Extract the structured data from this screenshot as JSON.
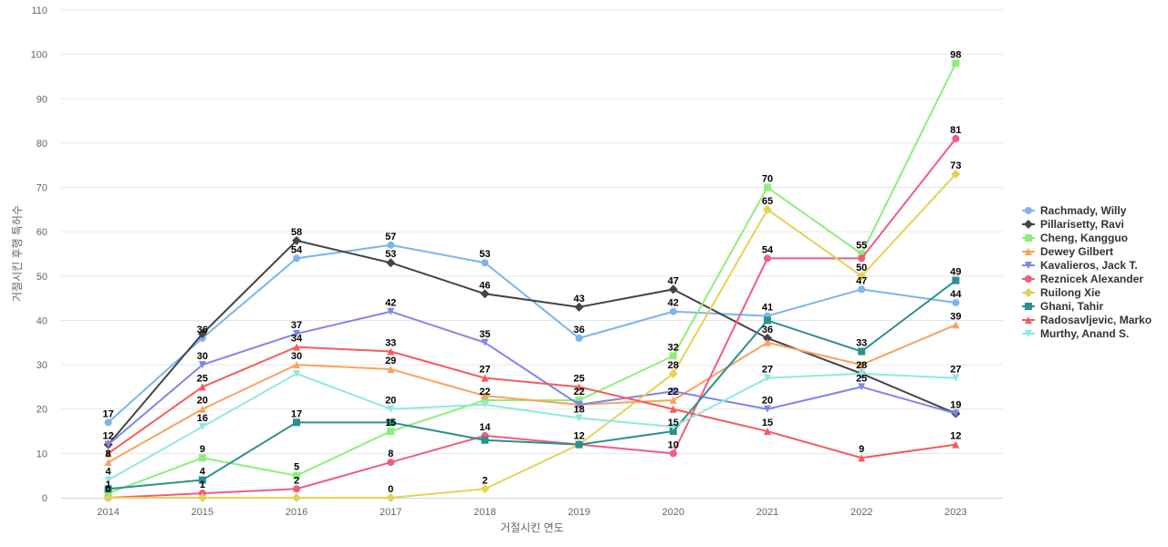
{
  "chart_data": {
    "type": "line",
    "title": "",
    "xlabel": "거절시킨 연도",
    "ylabel": "거절시킨 후행 특허수",
    "x": [
      "2014",
      "2015",
      "2016",
      "2017",
      "2018",
      "2019",
      "2020",
      "2021",
      "2022",
      "2023"
    ],
    "ylim": [
      0,
      110
    ],
    "yticks": [
      0,
      10,
      20,
      30,
      40,
      50,
      60,
      70,
      80,
      90,
      100,
      110
    ],
    "grid": true,
    "legend_position": "right",
    "series": [
      {
        "name": "Rachmady, Willy",
        "color": "#7cb5ec",
        "marker": "circle",
        "values": [
          17,
          36,
          54,
          57,
          53,
          36,
          42,
          41,
          47,
          44
        ]
      },
      {
        "name": "Pillarisetty, Ravi",
        "color": "#434348",
        "marker": "diamond",
        "values": [
          12,
          37,
          58,
          53,
          46,
          43,
          47,
          36,
          28,
          19
        ]
      },
      {
        "name": "Cheng, Kangguo",
        "color": "#90ed7d",
        "marker": "square",
        "values": [
          1,
          9,
          5,
          15,
          22,
          22,
          32,
          70,
          55,
          98
        ]
      },
      {
        "name": "Dewey Gilbert",
        "color": "#f7a35c",
        "marker": "triangle",
        "values": [
          8,
          20,
          30,
          29,
          23,
          21,
          22,
          35,
          30,
          39
        ]
      },
      {
        "name": "Kavalieros, Jack T.",
        "color": "#8085e9",
        "marker": "triangle-down",
        "values": [
          12,
          30,
          37,
          42,
          35,
          21,
          24,
          20,
          25,
          19
        ]
      },
      {
        "name": "Reznicek Alexander",
        "color": "#f15c80",
        "marker": "circle",
        "values": [
          0,
          1,
          2,
          8,
          14,
          12,
          10,
          54,
          54,
          81
        ]
      },
      {
        "name": "Ruilong Xie",
        "color": "#e4d354",
        "marker": "diamond",
        "values": [
          0,
          0,
          0,
          0,
          2,
          12,
          28,
          65,
          50,
          73
        ]
      },
      {
        "name": "Ghani, Tahir",
        "color": "#2b908f",
        "marker": "square",
        "values": [
          2,
          4,
          17,
          17,
          13,
          12,
          15,
          40,
          33,
          49
        ]
      },
      {
        "name": "Radosavljevic, Marko",
        "color": "#f45b5b",
        "marker": "triangle",
        "values": [
          10,
          25,
          34,
          33,
          27,
          25,
          20,
          15,
          9,
          12
        ]
      },
      {
        "name": "Murthy, Anand S.",
        "color": "#91e8e1",
        "marker": "triangle-down",
        "values": [
          4,
          16,
          28,
          20,
          21,
          18,
          16,
          27,
          28,
          27
        ]
      }
    ],
    "data_labels": [
      {
        "x": 0,
        "text": "17"
      },
      {
        "x": 0,
        "text": "12"
      },
      {
        "x": 0,
        "text": "8"
      },
      {
        "x": 0,
        "text": "4"
      },
      {
        "x": 0,
        "text": "1"
      },
      {
        "x": 0,
        "text": "0"
      },
      {
        "x": 1,
        "text": "36"
      },
      {
        "x": 1,
        "text": "30"
      },
      {
        "x": 1,
        "text": "25"
      },
      {
        "x": 1,
        "text": "20"
      },
      {
        "x": 1,
        "text": "16"
      },
      {
        "x": 1,
        "text": "9"
      },
      {
        "x": 1,
        "text": "4"
      },
      {
        "x": 1,
        "text": "1"
      },
      {
        "x": 2,
        "text": "58"
      },
      {
        "x": 2,
        "text": "54"
      },
      {
        "x": 2,
        "text": "37"
      },
      {
        "x": 2,
        "text": "34"
      },
      {
        "x": 2,
        "text": "30"
      },
      {
        "x": 2,
        "text": "17"
      },
      {
        "x": 2,
        "text": "5"
      },
      {
        "x": 2,
        "text": "2"
      },
      {
        "x": 3,
        "text": "57"
      },
      {
        "x": 3,
        "text": "53"
      },
      {
        "x": 3,
        "text": "42"
      },
      {
        "x": 3,
        "text": "33"
      },
      {
        "x": 3,
        "text": "29"
      },
      {
        "x": 3,
        "text": "20"
      },
      {
        "x": 3,
        "text": "15"
      },
      {
        "x": 3,
        "text": "8"
      },
      {
        "x": 3,
        "text": "0"
      },
      {
        "x": 4,
        "text": "53"
      },
      {
        "x": 4,
        "text": "46"
      },
      {
        "x": 4,
        "text": "35"
      },
      {
        "x": 4,
        "text": "27"
      },
      {
        "x": 4,
        "text": "22"
      },
      {
        "x": 4,
        "text": "14"
      },
      {
        "x": 4,
        "text": "2"
      },
      {
        "x": 5,
        "text": "43"
      },
      {
        "x": 5,
        "text": "36"
      },
      {
        "x": 5,
        "text": "25"
      },
      {
        "x": 5,
        "text": "22"
      },
      {
        "x": 5,
        "text": "18"
      },
      {
        "x": 5,
        "text": "12"
      },
      {
        "x": 6,
        "text": "47"
      },
      {
        "x": 6,
        "text": "42"
      },
      {
        "x": 6,
        "text": "32"
      },
      {
        "x": 6,
        "text": "28"
      },
      {
        "x": 6,
        "text": "22"
      },
      {
        "x": 6,
        "text": "15"
      },
      {
        "x": 6,
        "text": "10"
      },
      {
        "x": 7,
        "text": "70"
      },
      {
        "x": 7,
        "text": "65"
      },
      {
        "x": 7,
        "text": "54"
      },
      {
        "x": 7,
        "text": "41"
      },
      {
        "x": 7,
        "text": "36"
      },
      {
        "x": 7,
        "text": "27"
      },
      {
        "x": 7,
        "text": "20"
      },
      {
        "x": 7,
        "text": "15"
      },
      {
        "x": 8,
        "text": "55"
      },
      {
        "x": 8,
        "text": "50"
      },
      {
        "x": 8,
        "text": "47"
      },
      {
        "x": 8,
        "text": "33"
      },
      {
        "x": 8,
        "text": "28"
      },
      {
        "x": 8,
        "text": "25"
      },
      {
        "x": 8,
        "text": "9"
      },
      {
        "x": 9,
        "text": "98"
      },
      {
        "x": 9,
        "text": "81"
      },
      {
        "x": 9,
        "text": "73"
      },
      {
        "x": 9,
        "text": "49"
      },
      {
        "x": 9,
        "text": "44"
      },
      {
        "x": 9,
        "text": "39"
      },
      {
        "x": 9,
        "text": "27"
      },
      {
        "x": 9,
        "text": "19"
      },
      {
        "x": 9,
        "text": "12"
      }
    ]
  }
}
